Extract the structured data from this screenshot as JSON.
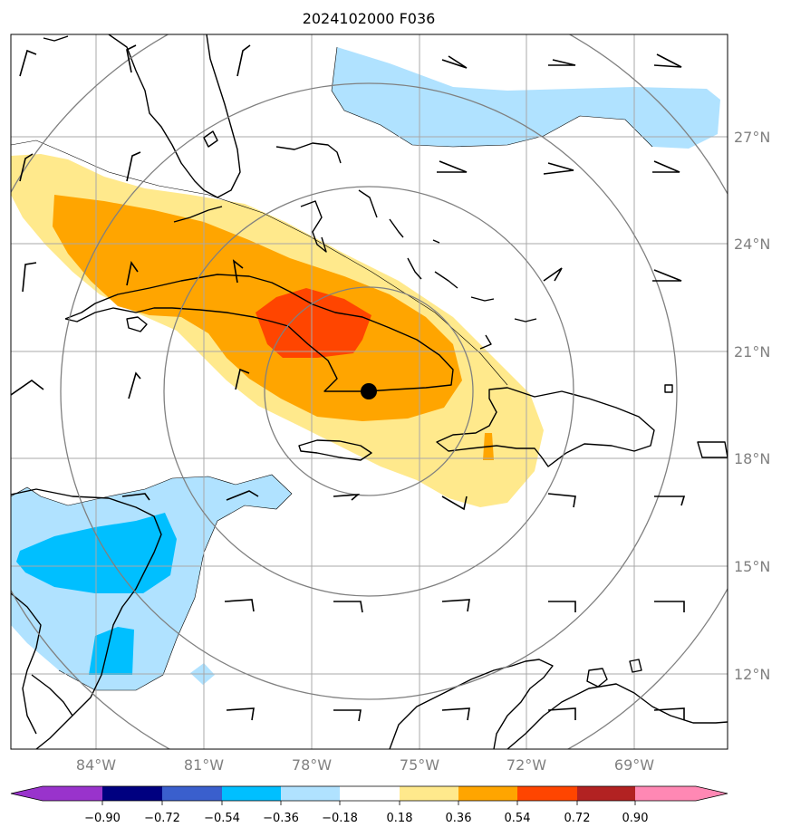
{
  "title": "2024102000 F036",
  "map": {
    "lon_range": [
      -86,
      -66.8
    ],
    "lat_range": [
      9.9,
      29.8
    ],
    "lat_gridlines": [
      12,
      15,
      18,
      21,
      24,
      27
    ],
    "lon_gridlines": [
      -84,
      -81,
      -78,
      -75,
      -72,
      -69
    ],
    "lat_labels": [
      "12°N",
      "15°N",
      "18°N",
      "21°N",
      "24°N",
      "27°N"
    ],
    "lon_labels": [
      "84°W",
      "81°W",
      "78°W",
      "75°W",
      "72°W",
      "69°W"
    ],
    "center_marker": {
      "lon": -76.5,
      "lat": 19.8
    },
    "range_rings": 4
  },
  "colorbar": {
    "levels": [
      -0.9,
      -0.72,
      -0.54,
      -0.36,
      -0.18,
      0.18,
      0.36,
      0.54,
      0.72,
      0.9
    ],
    "labels": [
      "−0.90",
      "−0.72",
      "−0.54",
      "−0.36",
      "−0.18",
      "0.18",
      "0.36",
      "0.54",
      "0.72",
      "0.90"
    ],
    "colors": [
      "#9933cc",
      "#000080",
      "#3a5fcd",
      "#00bfff",
      "#b0e2ff",
      "#ffffff",
      "#ffe98c",
      "#ffa500",
      "#ff4500",
      "#b22222",
      "#ff88b4"
    ]
  },
  "wind_barbs_icon": "wind-barb-icon"
}
